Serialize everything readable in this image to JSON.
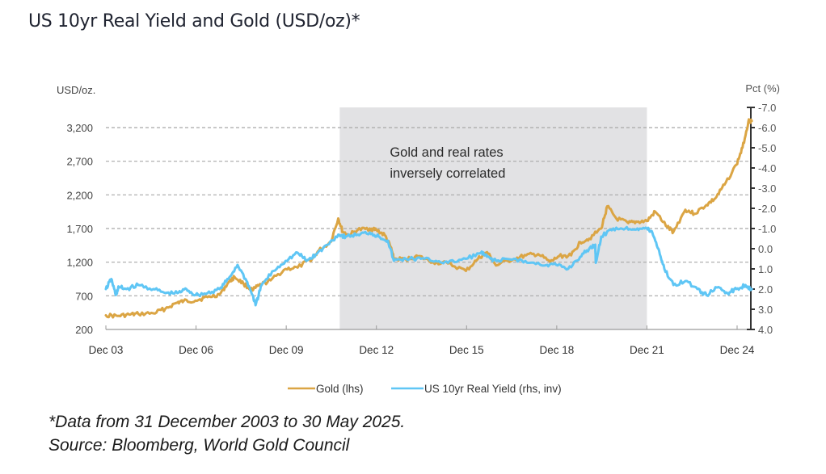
{
  "page": {
    "title": "US 10yr Real Yield and Gold (USD/oz)*",
    "footnote_line1": "*Data from 31 December 2003 to 30 May 2025.",
    "footnote_line2": "Source: Bloomberg, World Gold Council"
  },
  "chart_data": {
    "type": "line",
    "title": "US 10yr Real Yield and Gold (USD/oz)*",
    "ylabel_left": "USD/oz.",
    "ylabel_right": "Pct (%)",
    "xlabel": "",
    "x_range": [
      2003.92,
      2025.41
    ],
    "ylim_left": [
      200,
      3500
    ],
    "ylim_right": [
      4.0,
      -7.0
    ],
    "right_axis_inverted": true,
    "grid": "horizontal dashed",
    "x_ticks": [
      {
        "label": "Dec 03",
        "x": 2003.92
      },
      {
        "label": "Dec 06",
        "x": 2006.92
      },
      {
        "label": "Dec 09",
        "x": 2009.92
      },
      {
        "label": "Dec 12",
        "x": 2012.92
      },
      {
        "label": "Dec 15",
        "x": 2015.92
      },
      {
        "label": "Dec 18",
        "x": 2018.92
      },
      {
        "label": "Dec 21",
        "x": 2021.92
      },
      {
        "label": "Dec 24",
        "x": 2024.92
      }
    ],
    "y_ticks_left": [
      {
        "label": "200",
        "v": 200
      },
      {
        "label": "700",
        "v": 700
      },
      {
        "label": "1,200",
        "v": 1200
      },
      {
        "label": "1,700",
        "v": 1700
      },
      {
        "label": "2,200",
        "v": 2200
      },
      {
        "label": "2,700",
        "v": 2700
      },
      {
        "label": "3,200",
        "v": 3200
      }
    ],
    "y_ticks_right": [
      {
        "label": "-7.0",
        "v": -7.0
      },
      {
        "label": "-6.0",
        "v": -6.0
      },
      {
        "label": "-5.0",
        "v": -5.0
      },
      {
        "label": "-4.0",
        "v": -4.0
      },
      {
        "label": "-3.0",
        "v": -3.0
      },
      {
        "label": "-2.0",
        "v": -2.0
      },
      {
        "label": "-1.0",
        "v": -1.0
      },
      {
        "label": "0.0",
        "v": 0.0
      },
      {
        "label": "1.0",
        "v": 1.0
      },
      {
        "label": "2.0",
        "v": 2.0
      },
      {
        "label": "3.0",
        "v": 3.0
      },
      {
        "label": "4.0",
        "v": 4.0
      }
    ],
    "shaded_region": {
      "x_start": 2011.7,
      "x_end": 2021.92,
      "label_line1": "Gold and real rates",
      "label_line2": "inversely correlated"
    },
    "legend": {
      "placement": "bottom-center"
    },
    "series": [
      {
        "name": "Gold (lhs)",
        "axis": "left",
        "color": "#dba544",
        "x": [
          2003.92,
          2004.3,
          2004.7,
          2005.0,
          2005.5,
          2005.9,
          2006.3,
          2006.5,
          2006.9,
          2007.3,
          2007.7,
          2008.0,
          2008.2,
          2008.5,
          2008.8,
          2009.0,
          2009.4,
          2009.9,
          2010.3,
          2010.8,
          2011.0,
          2011.4,
          2011.65,
          2011.8,
          2012.0,
          2012.3,
          2012.7,
          2012.92,
          2013.2,
          2013.4,
          2013.5,
          2013.9,
          2014.3,
          2014.8,
          2015.3,
          2015.9,
          2016.3,
          2016.6,
          2016.9,
          2017.5,
          2017.9,
          2018.3,
          2018.7,
          2019.0,
          2019.4,
          2019.7,
          2020.0,
          2020.4,
          2020.6,
          2020.9,
          2021.3,
          2021.6,
          2021.92,
          2022.2,
          2022.6,
          2022.8,
          2023.2,
          2023.5,
          2023.9,
          2024.2,
          2024.5,
          2024.9,
          2025.1,
          2025.3,
          2025.41
        ],
        "values": [
          410,
          400,
          420,
          430,
          440,
          510,
          600,
          620,
          630,
          680,
          720,
          900,
          980,
          880,
          780,
          850,
          930,
          1100,
          1120,
          1260,
          1370,
          1500,
          1850,
          1650,
          1600,
          1680,
          1700,
          1680,
          1600,
          1420,
          1250,
          1240,
          1290,
          1200,
          1180,
          1070,
          1250,
          1350,
          1150,
          1250,
          1300,
          1320,
          1200,
          1290,
          1300,
          1500,
          1550,
          1700,
          2030,
          1850,
          1780,
          1800,
          1810,
          1950,
          1720,
          1650,
          1980,
          1920,
          2050,
          2150,
          2350,
          2650,
          2900,
          3300,
          3300
        ]
      },
      {
        "name": "US 10yr Real Yield (rhs, inv)",
        "axis": "right",
        "color": "#5fc6f5",
        "x": [
          2003.92,
          2004.1,
          2004.25,
          2004.35,
          2004.6,
          2005.0,
          2005.5,
          2005.9,
          2006.3,
          2006.6,
          2006.9,
          2007.3,
          2007.7,
          2008.0,
          2008.3,
          2008.6,
          2008.8,
          2008.9,
          2009.1,
          2009.5,
          2009.9,
          2010.3,
          2010.6,
          2010.9,
          2011.3,
          2011.65,
          2011.9,
          2012.3,
          2012.7,
          2013.0,
          2013.3,
          2013.5,
          2013.9,
          2014.4,
          2014.9,
          2015.3,
          2015.9,
          2016.4,
          2016.6,
          2016.9,
          2017.5,
          2018.0,
          2018.6,
          2018.9,
          2019.3,
          2019.7,
          2020.0,
          2020.2,
          2020.22,
          2020.4,
          2020.8,
          2021.2,
          2021.6,
          2021.92,
          2022.1,
          2022.3,
          2022.5,
          2022.8,
          2023.2,
          2023.6,
          2023.9,
          2024.3,
          2024.6,
          2024.9,
          2025.2,
          2025.41
        ],
        "values": [
          2.0,
          1.5,
          2.3,
          1.9,
          2.0,
          1.8,
          2.0,
          2.2,
          2.2,
          2.0,
          2.3,
          2.2,
          2.0,
          1.5,
          0.8,
          1.6,
          2.3,
          2.8,
          1.8,
          1.1,
          0.6,
          0.2,
          0.6,
          0.3,
          -0.2,
          -0.7,
          -0.6,
          -0.7,
          -0.8,
          -0.6,
          -0.4,
          0.6,
          0.5,
          0.5,
          0.6,
          0.7,
          0.5,
          0.2,
          0.4,
          0.6,
          0.5,
          0.7,
          0.8,
          0.8,
          1.0,
          0.4,
          0.0,
          -0.2,
          0.7,
          -0.6,
          -1.0,
          -1.0,
          -1.0,
          -1.0,
          -0.8,
          0.0,
          1.0,
          1.8,
          1.6,
          2.0,
          2.3,
          1.9,
          2.2,
          2.0,
          1.8,
          2.0
        ]
      }
    ]
  }
}
